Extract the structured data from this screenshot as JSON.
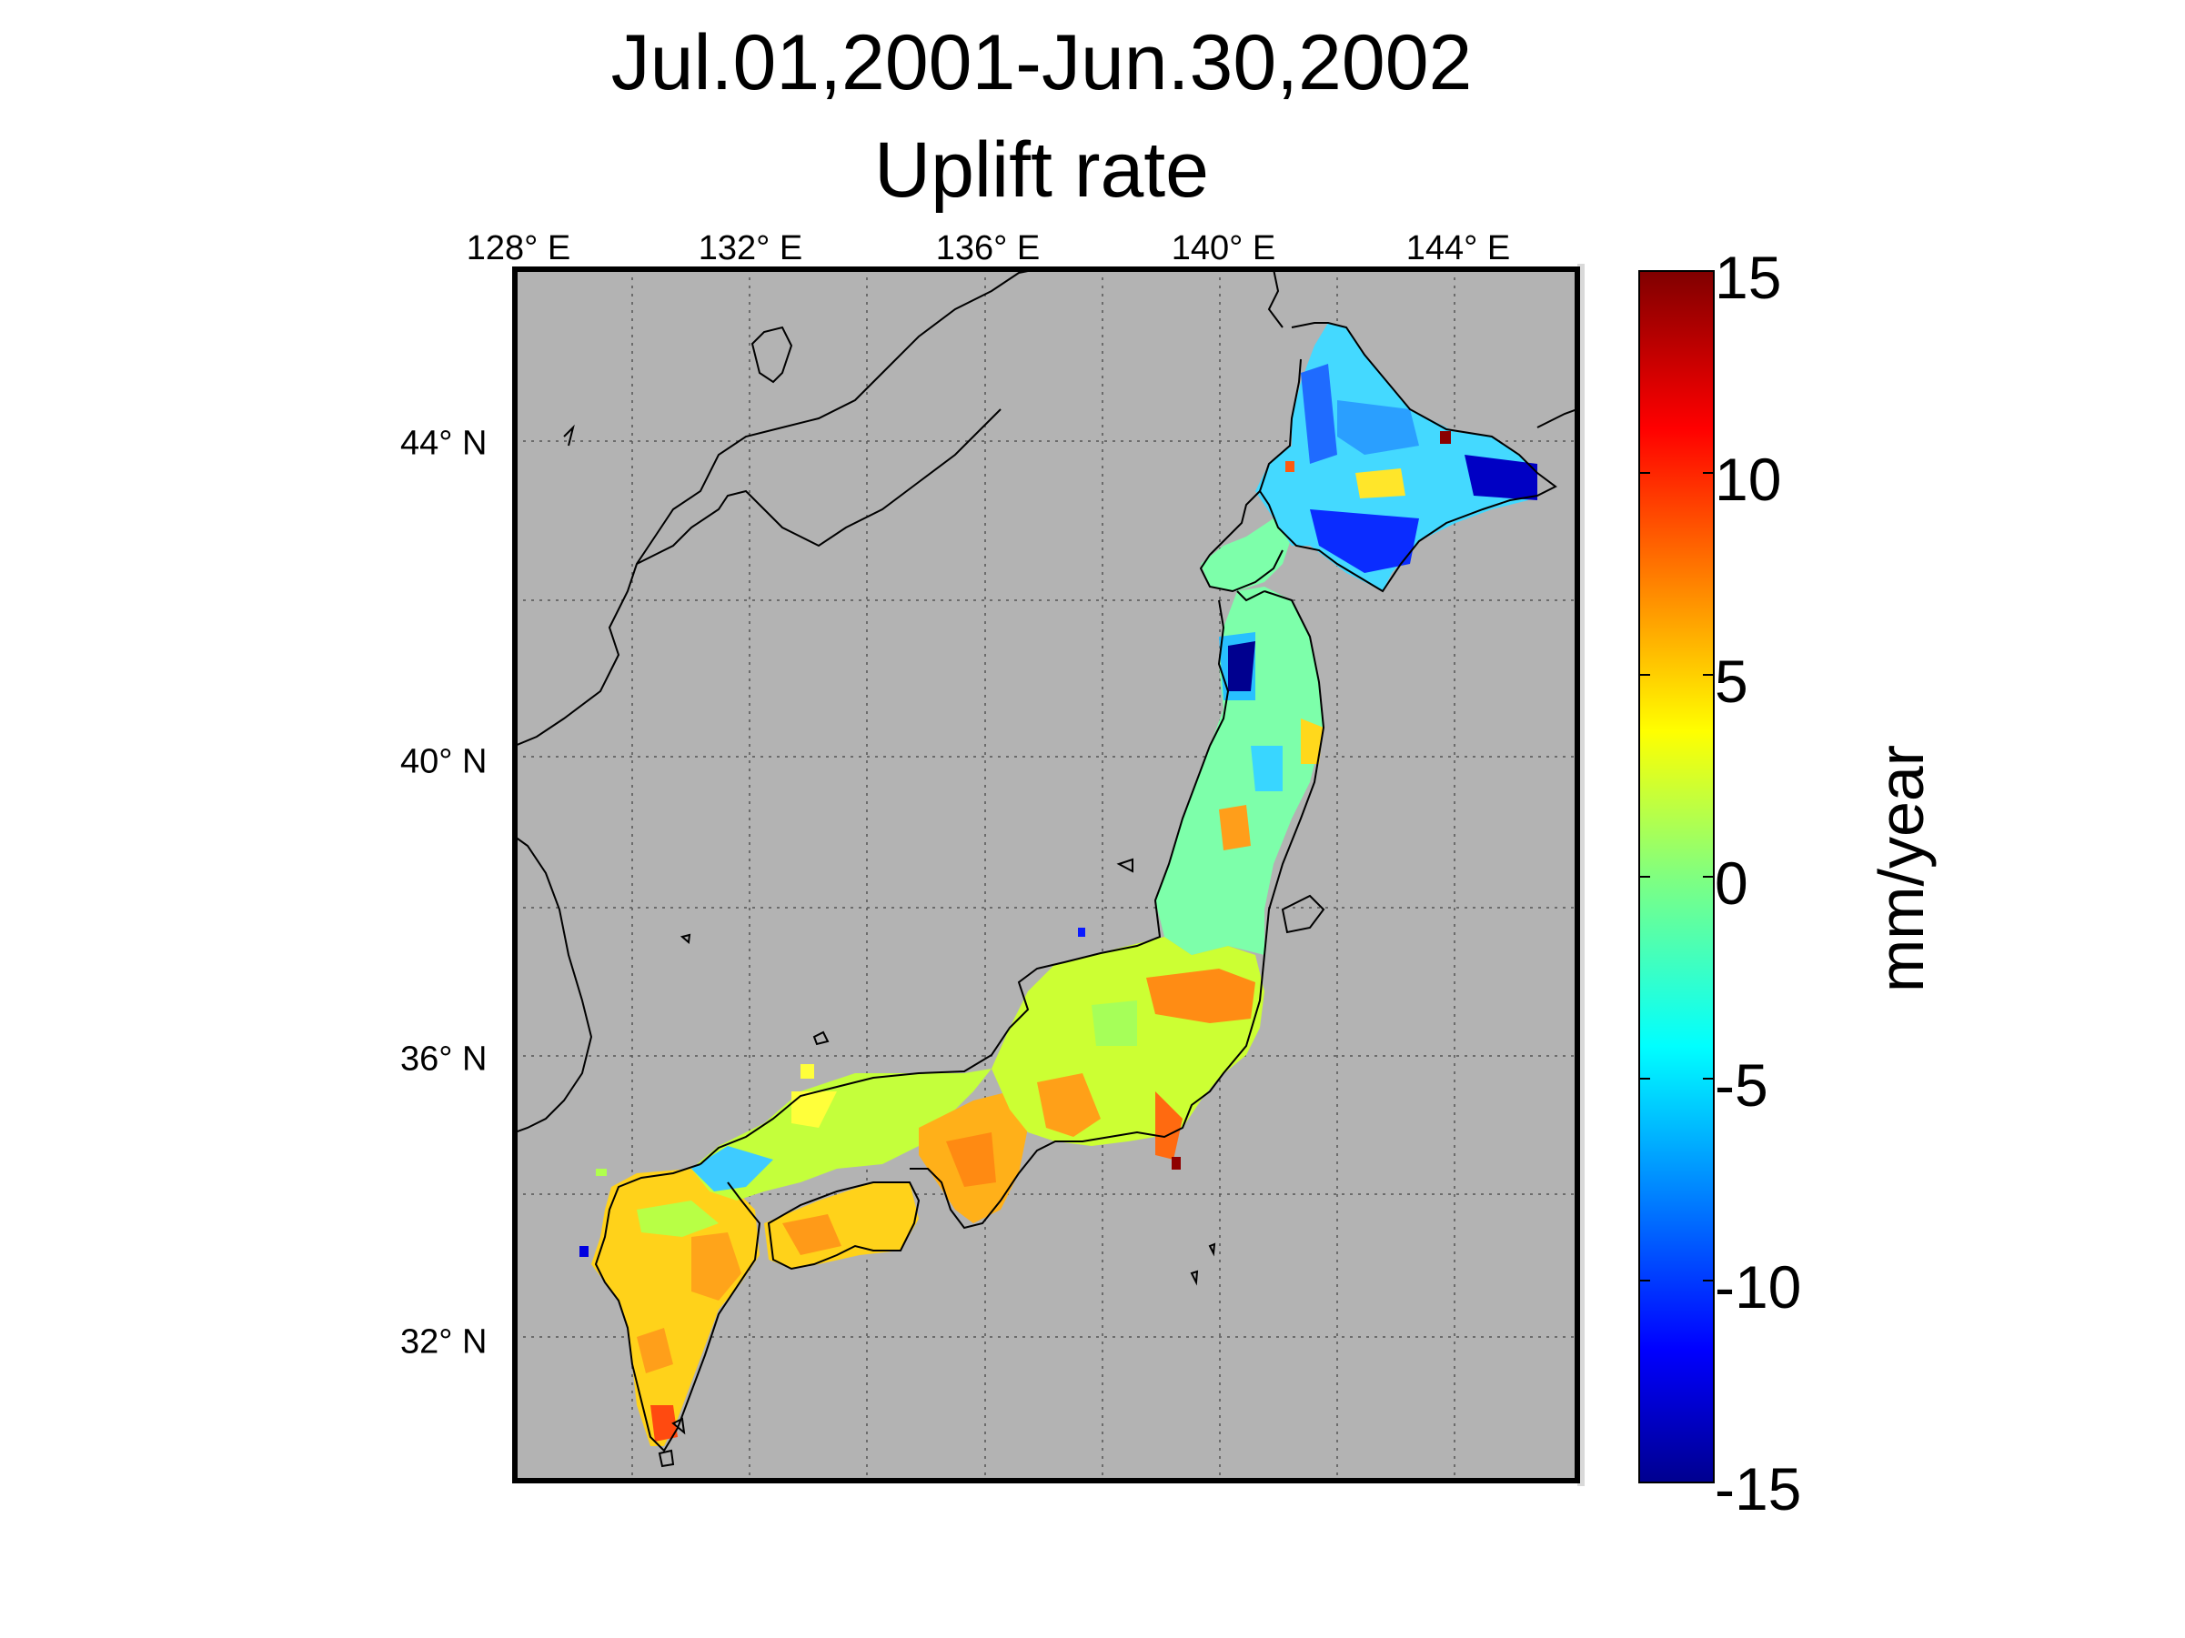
{
  "map": {
    "title_line1": "Jul.01,2001-Jun.30,2002",
    "title_line2": "Uplift rate",
    "lon_ticks": [
      "128° E",
      "132° E",
      "136° E",
      "140° E",
      "144° E"
    ],
    "lat_ticks": [
      "44° N",
      "40° N",
      "36° N",
      "32° N"
    ],
    "lon_values": [
      128,
      132,
      136,
      140,
      144
    ],
    "lat_values": [
      44,
      40,
      36,
      32
    ],
    "lon_range": [
      128,
      146
    ],
    "lat_range": [
      30,
      46
    ],
    "ocean_color": "#b3b3b3",
    "coast_color": "#000000"
  },
  "colorbar": {
    "label": "mm/year",
    "ticks": [
      "15",
      "10",
      "5",
      "0",
      "-5",
      "-10",
      "-15"
    ],
    "tick_values": [
      15,
      10,
      5,
      0,
      -5,
      -10,
      -15
    ],
    "range": [
      -15,
      15
    ],
    "colormap": "jet"
  }
}
